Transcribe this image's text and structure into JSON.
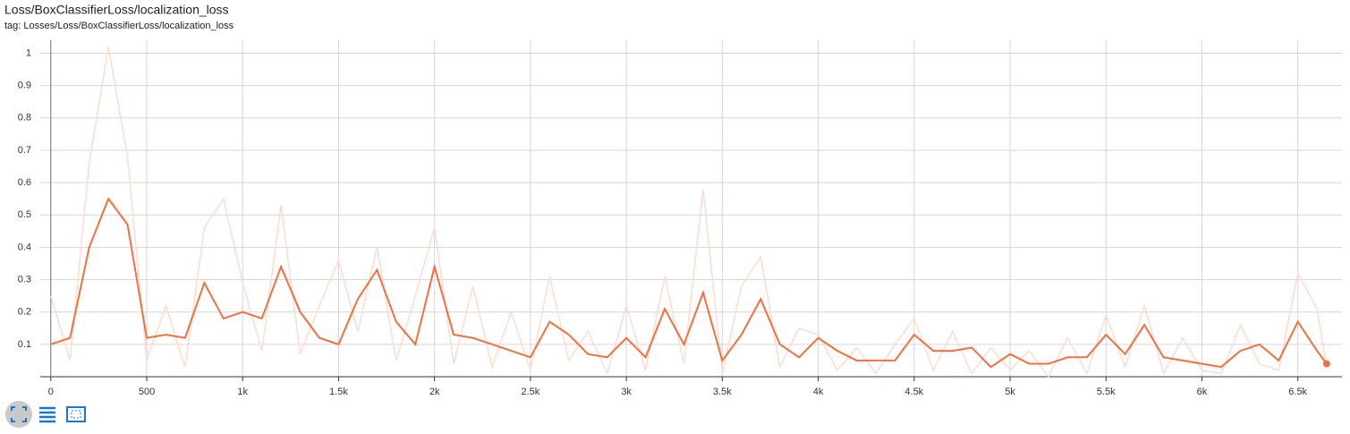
{
  "chart_data": {
    "type": "line",
    "title": "Loss/BoxClassifierLoss/localization_loss",
    "subtitle": "tag: Losses/Loss/BoxClassifierLoss/localization_loss",
    "x": [
      0,
      100,
      200,
      300,
      400,
      500,
      600,
      700,
      800,
      900,
      1000,
      1100,
      1200,
      1300,
      1400,
      1500,
      1600,
      1700,
      1800,
      1900,
      2000,
      2100,
      2200,
      2300,
      2400,
      2500,
      2600,
      2700,
      2800,
      2900,
      3000,
      3100,
      3200,
      3300,
      3400,
      3500,
      3600,
      3700,
      3800,
      3900,
      4000,
      4100,
      4200,
      4300,
      4400,
      4500,
      4600,
      4700,
      4800,
      4900,
      5000,
      5100,
      5200,
      5300,
      5400,
      5500,
      5600,
      5700,
      5800,
      5900,
      6000,
      6100,
      6200,
      6300,
      6400,
      6500,
      6600,
      6650
    ],
    "series": [
      {
        "color": "#fddccf",
        "values": [
          0.25,
          0.05,
          0.66,
          1.02,
          0.68,
          0.05,
          0.22,
          0.03,
          0.46,
          0.55,
          0.29,
          0.08,
          0.53,
          0.07,
          0.22,
          0.36,
          0.14,
          0.4,
          0.05,
          0.25,
          0.46,
          0.04,
          0.28,
          0.03,
          0.2,
          0.02,
          0.31,
          0.05,
          0.14,
          0.01,
          0.22,
          0.02,
          0.31,
          0.04,
          0.58,
          0.01,
          0.28,
          0.37,
          0.03,
          0.15,
          0.13,
          0.02,
          0.09,
          0.01,
          0.1,
          0.18,
          0.02,
          0.14,
          0.01,
          0.09,
          0.02,
          0.08,
          0.0,
          0.12,
          0.01,
          0.19,
          0.03,
          0.22,
          0.01,
          0.12,
          0.02,
          0.01,
          0.16,
          0.04,
          0.02,
          0.32,
          0.21,
          0.03
        ]
      },
      {
        "color": "#f07140",
        "values": [
          0.1,
          0.12,
          0.4,
          0.55,
          0.47,
          0.12,
          0.13,
          0.12,
          0.29,
          0.18,
          0.2,
          0.18,
          0.34,
          0.2,
          0.12,
          0.1,
          0.24,
          0.33,
          0.17,
          0.1,
          0.34,
          0.13,
          0.12,
          0.1,
          0.08,
          0.06,
          0.17,
          0.13,
          0.07,
          0.06,
          0.12,
          0.06,
          0.21,
          0.1,
          0.26,
          0.05,
          0.13,
          0.24,
          0.1,
          0.06,
          0.12,
          0.08,
          0.05,
          0.05,
          0.05,
          0.13,
          0.08,
          0.08,
          0.09,
          0.03,
          0.07,
          0.04,
          0.04,
          0.06,
          0.06,
          0.13,
          0.07,
          0.16,
          0.06,
          0.05,
          0.04,
          0.03,
          0.08,
          0.1,
          0.05,
          0.17,
          0.08,
          0.04
        ]
      }
    ],
    "xlim": [
      -55,
      6730
    ],
    "ylim": [
      0,
      1.04
    ],
    "xticks": [
      0,
      500,
      {
        "value": 1000,
        "label": "1k"
      },
      {
        "value": 1500,
        "label": "1.5k"
      },
      {
        "value": 2000,
        "label": "2k"
      },
      {
        "value": 2500,
        "label": "2.5k"
      },
      {
        "value": 3000,
        "label": "3k"
      },
      {
        "value": 3500,
        "label": "3.5k"
      },
      {
        "value": 4000,
        "label": "4k"
      },
      {
        "value": 4500,
        "label": "4.5k"
      },
      {
        "value": 5000,
        "label": "5k"
      },
      {
        "value": 5500,
        "label": "5.5k"
      },
      {
        "value": 6000,
        "label": "6k"
      },
      {
        "value": 6500,
        "label": "6.5k"
      }
    ],
    "yticks": [
      0.1,
      0.2,
      0.3,
      0.4,
      0.5,
      0.6,
      0.7,
      0.8,
      0.9,
      1
    ],
    "grid": true
  }
}
